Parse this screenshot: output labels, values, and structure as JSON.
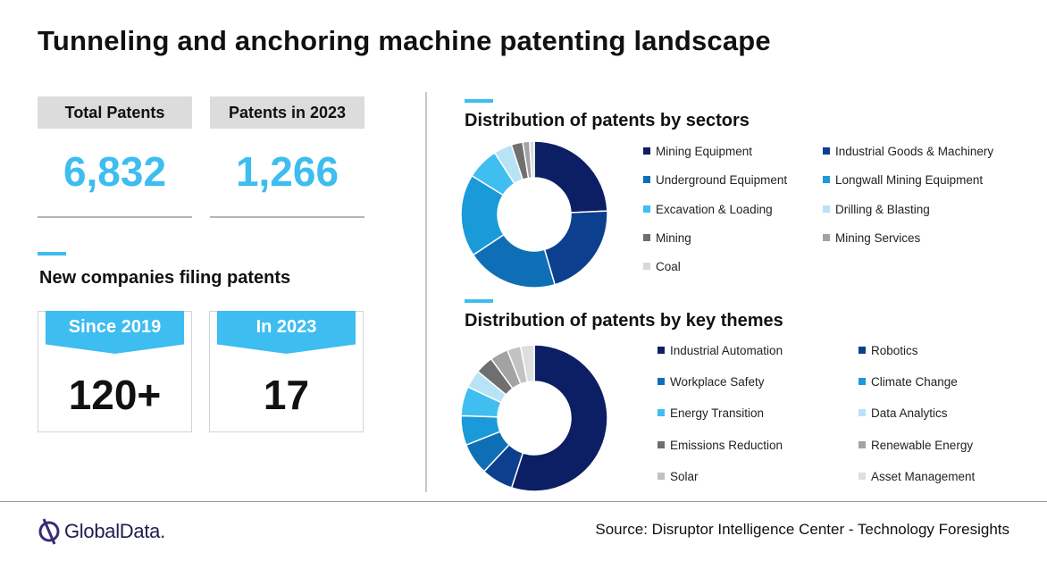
{
  "title": "Tunneling and anchoring machine patenting landscape",
  "stats": {
    "total_label": "Total Patents",
    "total_value": "6,832",
    "year_label": "Patents in 2023",
    "year_value": "1,266"
  },
  "new_companies": {
    "heading": "New companies filing patents",
    "since_label": "Since 2019",
    "since_value": "120+",
    "year_label": "In 2023",
    "year_value": "17"
  },
  "chart_data": [
    {
      "type": "pie",
      "title": "Distribution of patents by sectors",
      "donut": true,
      "legend_placement": "right",
      "categories": [
        "Mining Equipment",
        "Industrial Goods & Machinery",
        "Underground Equipment",
        "Longwall Mining Equipment",
        "Excavation & Loading",
        "Drilling & Blasting",
        "Mining",
        "Mining Services",
        "Coal"
      ],
      "values": [
        24,
        21,
        20,
        18,
        7,
        4,
        2.5,
        1.5,
        1
      ],
      "colors": [
        "#0c1e64",
        "#0d3f8f",
        "#0e6fb6",
        "#1a9ad8",
        "#40bef0",
        "#b8e3f6",
        "#6f6f6f",
        "#a3a3a3",
        "#d8d8d8"
      ]
    },
    {
      "type": "pie",
      "title": "Distribution of patents by key themes",
      "donut": true,
      "legend_placement": "right",
      "categories": [
        "Industrial Automation",
        "Robotics",
        "Workplace Safety",
        "Climate Change",
        "Energy Transition",
        "Data Analytics",
        "Emissions Reduction",
        "Renewable Energy",
        "Solar",
        "Asset Management"
      ],
      "values": [
        55,
        7,
        7,
        6.5,
        6.5,
        4,
        4,
        4,
        3,
        3
      ],
      "colors": [
        "#0c1e64",
        "#0d3f8f",
        "#0e6fb6",
        "#1a9ad8",
        "#40bef0",
        "#b8e3f6",
        "#6f6f6f",
        "#a3a3a3",
        "#c2c2c2",
        "#dedede"
      ]
    }
  ],
  "footer": {
    "logo": "GlobalData.",
    "source": "Source: Disruptor Intelligence Center - Technology Foresights"
  },
  "colors": {
    "accent": "#3dbdf0",
    "navy": "#0c1e64"
  }
}
